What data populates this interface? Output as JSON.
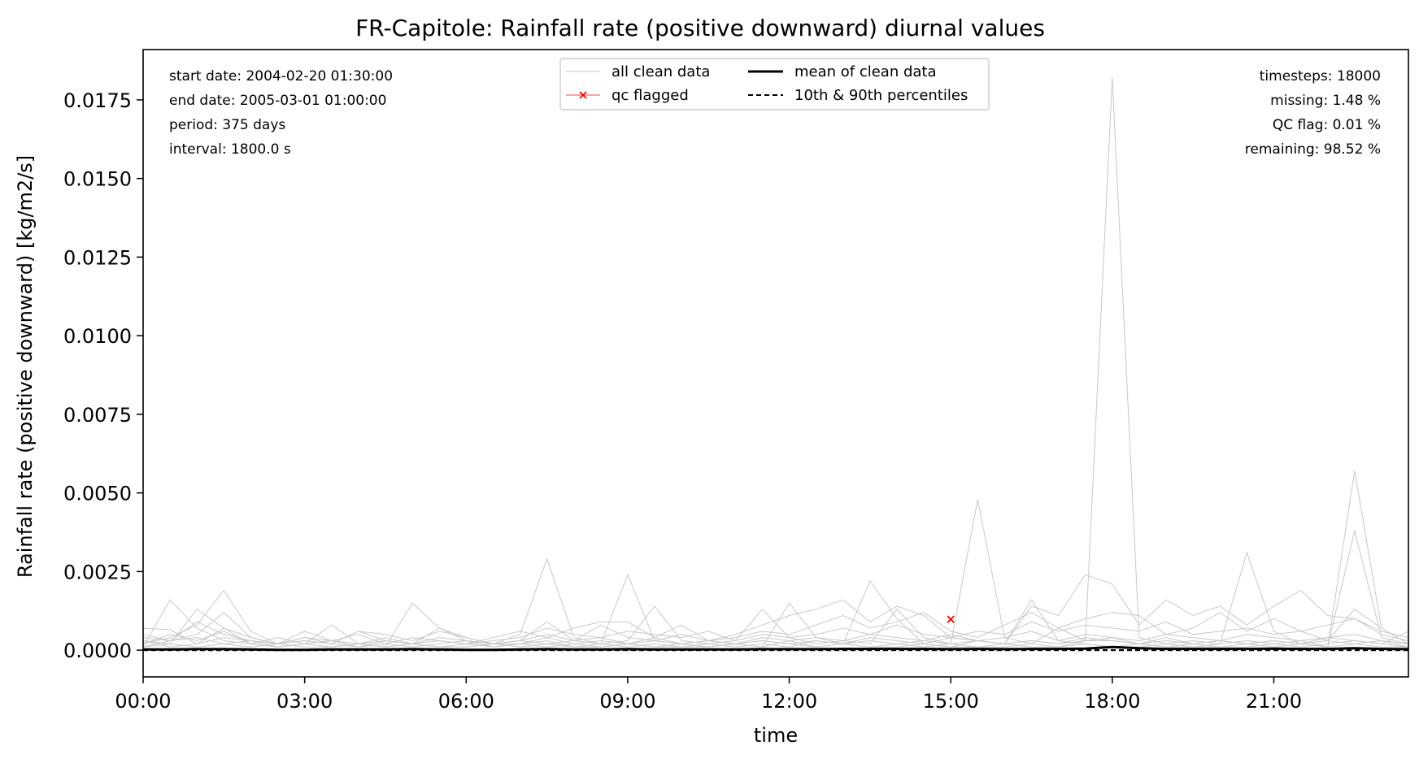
{
  "chart_data": {
    "type": "line",
    "title": "FR-Capitole: Rainfall rate (positive downward) diurnal values",
    "xlabel": "time",
    "ylabel": "Rainfall rate (positive downward) [kg/m2/s]",
    "xlim": [
      0,
      23.5
    ],
    "ylim": [
      -0.00085,
      0.0191
    ],
    "x_tick_values": [
      0,
      3,
      6,
      9,
      12,
      15,
      18,
      21
    ],
    "x_tick_labels": [
      "00:00",
      "03:00",
      "06:00",
      "09:00",
      "12:00",
      "15:00",
      "18:00",
      "21:00"
    ],
    "y_tick_values": [
      0,
      0.0025,
      0.005,
      0.0075,
      0.01,
      0.0125,
      0.015,
      0.0175
    ],
    "y_tick_labels": [
      "0.0000",
      "0.0025",
      "0.0050",
      "0.0075",
      "0.0100",
      "0.0125",
      "0.0150",
      "0.0175"
    ],
    "grid": false,
    "legend_position": "top-center",
    "legend": [
      {
        "label": "all clean data",
        "style": "thin-gray-line"
      },
      {
        "label": "mean of clean data",
        "style": "thick-black-line"
      },
      {
        "label": "qc flagged",
        "style": "red-x-marker"
      },
      {
        "label": "10th & 90th percentiles",
        "style": "dashed-black-line"
      }
    ],
    "info_left": [
      "start date: 2004-02-20 01:30:00",
      "end date: 2005-03-01 01:00:00",
      "period: 375 days",
      "interval: 1800.0 s"
    ],
    "info_right": [
      "timesteps: 18000",
      "missing: 1.48 %",
      "QC flag: 0.01 %",
      "remaining: 98.52 %"
    ],
    "colors": {
      "clean_data": "#c8c8c8",
      "mean": "#000000",
      "qc_flag": "#ff0000",
      "percentiles": "#000000"
    },
    "x": [
      0,
      0.5,
      1,
      1.5,
      2,
      2.5,
      3,
      3.5,
      4,
      4.5,
      5,
      5.5,
      6,
      6.5,
      7,
      7.5,
      8,
      8.5,
      9,
      9.5,
      10,
      10.5,
      11,
      11.5,
      12,
      12.5,
      13,
      13.5,
      14,
      14.5,
      15,
      15.5,
      16,
      16.5,
      17,
      17.5,
      18,
      18.5,
      19,
      19.5,
      20,
      20.5,
      21,
      21.5,
      22,
      22.5,
      23,
      23.5
    ],
    "series": [
      {
        "name": "mean of clean data",
        "role": "mean",
        "values": [
          2e-05,
          2e-05,
          3e-05,
          3e-05,
          2e-05,
          1e-05,
          1e-05,
          2e-05,
          2e-05,
          2e-05,
          3e-05,
          2e-05,
          1e-05,
          1e-05,
          2e-05,
          3e-05,
          2e-05,
          2e-05,
          3e-05,
          2e-05,
          2e-05,
          2e-05,
          2e-05,
          3e-05,
          3e-05,
          3e-05,
          4e-05,
          4e-05,
          4e-05,
          4e-05,
          3e-05,
          4e-05,
          3e-05,
          4e-05,
          4e-05,
          5e-05,
          0.0001,
          6e-05,
          4e-05,
          4e-05,
          4e-05,
          4e-05,
          5e-05,
          4e-05,
          4e-05,
          6e-05,
          4e-05,
          3e-05
        ]
      },
      {
        "name": "10th & 90th percentiles",
        "role": "p10",
        "values": [
          0,
          0,
          0,
          0,
          0,
          0,
          0,
          0,
          0,
          0,
          0,
          0,
          0,
          0,
          0,
          0,
          0,
          0,
          0,
          0,
          0,
          0,
          0,
          0,
          0,
          0,
          0,
          0,
          0,
          0,
          0,
          0,
          0,
          0,
          0,
          0,
          0,
          0,
          0,
          0,
          0,
          0,
          0,
          0,
          0,
          0,
          0,
          0
        ]
      },
      {
        "name": "10th & 90th percentiles",
        "role": "p90",
        "values": [
          0,
          0,
          0,
          0,
          0,
          0,
          0,
          0,
          0,
          0,
          0,
          0,
          0,
          0,
          0,
          0,
          0,
          0,
          0,
          0,
          0,
          0,
          0,
          0,
          0,
          0,
          0,
          0,
          0,
          0,
          0,
          0,
          0,
          0,
          0,
          0,
          0,
          0,
          0,
          0,
          0,
          0,
          0,
          0,
          0,
          0,
          0,
          0
        ]
      },
      {
        "name": "all clean data",
        "role": "day",
        "values": [
          0.0007,
          0.00065,
          0.0002,
          0.0007,
          0.0004,
          0.0002,
          0.0003,
          0.0002,
          0.0001,
          0.0003,
          0.0002,
          0.0001,
          0.0001,
          0.0002,
          0.0002,
          0.0003,
          0.0001,
          0.0002,
          0.0001,
          0.0002,
          0.0001,
          0.0001,
          0.0002,
          0.0001,
          0.0003,
          0.0001,
          0.0002,
          0.0001,
          0.0002,
          0.0001,
          0.0002,
          0.0001,
          0.0001,
          0.0002,
          0.0001,
          0.0003,
          0.0003,
          0.0002,
          0.0001,
          0.0002,
          0.0001,
          0.0001,
          0.0002,
          0.0001,
          0.0002,
          0.0003,
          0.0002,
          0.0001
        ]
      },
      {
        "name": "all clean data",
        "role": "day",
        "values": [
          0.0001,
          0.0016,
          0.0007,
          0.0003,
          0.0002,
          0.0001,
          0.0002,
          0.0001,
          0.0002,
          0.0001,
          0.0015,
          0.0007,
          0.0003,
          0.0002,
          0.0001,
          0.0002,
          0.0001,
          0.0001,
          0.0002,
          0.0001,
          0.0001,
          0.0002,
          0.0001,
          0.0002,
          0.0001,
          0.0003,
          0.0002,
          0.0001,
          0.0001,
          0.0002,
          0.0001,
          0.0001,
          0.0002,
          0.0001,
          0.0001,
          0.0002,
          0.0001,
          0.0001,
          0.0002,
          0.0001,
          0.0001,
          0.0002,
          0.0001,
          0.0002,
          0.0001,
          0.0002,
          0.0001,
          0.0001
        ]
      },
      {
        "name": "all clean data",
        "role": "day",
        "values": [
          0.0003,
          0.0002,
          0.0013,
          0.0007,
          0.0002,
          0.0001,
          0.0002,
          0.0008,
          0.0002,
          0.0001,
          0.0002,
          0.0001,
          0.0001,
          0.0002,
          0.0005,
          0.0029,
          0.0004,
          0.0002,
          0.0024,
          0.0003,
          0.0002,
          0.0001,
          0.0002,
          0.0001,
          0.0015,
          0.0004,
          0.0002,
          0.0022,
          0.001,
          0.0002,
          0.0001,
          0.0003,
          0.0002,
          0.0016,
          0.0003,
          0.0002,
          0.0001,
          0.0002,
          0.0001,
          0.0001,
          0.0002,
          0.0031,
          0.0006,
          0.0002,
          0.0001,
          0.0038,
          0.0004,
          0.0002
        ]
      },
      {
        "name": "all clean data",
        "role": "day",
        "values": [
          0.0002,
          0.0004,
          0.0008,
          0.0019,
          0.0006,
          0.0002,
          0.0003,
          0.0002,
          0.0006,
          0.0003,
          0.0002,
          0.0007,
          0.0004,
          0.0002,
          0.0003,
          0.0009,
          0.0003,
          0.0002,
          0.0003,
          0.0014,
          0.0003,
          0.0002,
          0.0003,
          0.0013,
          0.0004,
          0.0002,
          0.0003,
          0.0002,
          0.0013,
          0.0004,
          0.0002,
          0.0048,
          0.0004,
          0.0002,
          0.0007,
          0.0003,
          0.0182,
          0.0004,
          0.0002,
          0.0003,
          0.0002,
          0.0003,
          0.0002,
          0.0003,
          0.0001,
          0.0057,
          0.0007,
          0.0002
        ]
      },
      {
        "name": "all clean data",
        "role": "day",
        "values": [
          0.0001,
          0.0003,
          0.0005,
          0.0012,
          0.0004,
          0.0002,
          0.0006,
          0.0003,
          0.0002,
          0.0004,
          0.0002,
          0.0003,
          0.0002,
          0.0004,
          0.0006,
          0.0004,
          0.0007,
          0.0009,
          0.0009,
          0.0004,
          0.0008,
          0.0003,
          0.0005,
          0.0008,
          0.0011,
          0.0013,
          0.0016,
          0.0009,
          0.0014,
          0.0011,
          0.0004,
          0.0003,
          0.0002,
          0.0014,
          0.0011,
          0.0024,
          0.0021,
          0.0008,
          0.0016,
          0.0011,
          0.0014,
          0.0008,
          0.0014,
          0.0019,
          0.0011,
          0.001,
          0.0005,
          0.0003
        ]
      },
      {
        "name": "all clean data",
        "role": "day",
        "values": [
          0.0004,
          0.0003,
          0.0009,
          0.0005,
          0.0003,
          0.0002,
          0.0004,
          0.0002,
          0.0006,
          0.0005,
          0.0003,
          0.0006,
          0.0004,
          0.0002,
          0.0003,
          0.0005,
          0.0003,
          0.0008,
          0.0004,
          0.0003,
          0.0005,
          0.0003,
          0.0004,
          0.0006,
          0.0005,
          0.0008,
          0.0011,
          0.0007,
          0.0009,
          0.0012,
          0.0006,
          0.0004,
          0.0008,
          0.0012,
          0.0007,
          0.001,
          0.0012,
          0.0011,
          0.0005,
          0.0007,
          0.0012,
          0.0006,
          0.001,
          0.0006,
          0.0003,
          0.0013,
          0.0007,
          0.0002
        ]
      },
      {
        "name": "all clean data",
        "role": "day",
        "values": [
          0.0002,
          0.0005,
          0.0003,
          0.0006,
          0.0002,
          0.0004,
          0.0002,
          0.0003,
          0.0005,
          0.0002,
          0.0004,
          0.0003,
          0.0002,
          0.0003,
          0.0004,
          0.0007,
          0.0005,
          0.0004,
          0.0006,
          0.0005,
          0.0004,
          0.0006,
          0.0003,
          0.0005,
          0.0004,
          0.0005,
          0.0007,
          0.0005,
          0.0008,
          0.0005,
          0.0004,
          0.0006,
          0.0005,
          0.0009,
          0.0006,
          0.0008,
          0.0007,
          0.0006,
          0.0009,
          0.0005,
          0.0006,
          0.0007,
          0.0005,
          0.0006,
          0.0008,
          0.001,
          0.0006,
          0.0004
        ]
      },
      {
        "name": "all clean data",
        "role": "day",
        "values": [
          0.0003,
          0.0001,
          0.0002,
          0.0004,
          0.0003,
          0.0001,
          0.0002,
          0.0003,
          0.0001,
          0.0002,
          0.0001,
          0.0002,
          0.0003,
          0.0001,
          0.0002,
          0.0004,
          0.0002,
          0.0003,
          0.0002,
          0.0004,
          0.0002,
          0.0003,
          0.0002,
          0.0004,
          0.0003,
          0.0004,
          0.0003,
          0.0005,
          0.0004,
          0.0003,
          0.0005,
          0.0003,
          0.0004,
          0.0006,
          0.0003,
          0.0005,
          0.0004,
          0.0003,
          0.0005,
          0.0004,
          0.0003,
          0.0005,
          0.0004,
          0.0003,
          0.0004,
          0.0005,
          0.0003,
          0.0002
        ]
      },
      {
        "name": "all clean data",
        "role": "day",
        "values": [
          0.0001,
          0.0002,
          0.0001,
          0.0002,
          0.0001,
          0.0002,
          0.0001,
          0.0001,
          0.0002,
          0.0001,
          0.0002,
          0.0001,
          0.0002,
          0.0001,
          0.0002,
          0.0001,
          0.0002,
          0.0001,
          0.0002,
          0.0001,
          0.0002,
          0.0001,
          0.0002,
          0.0003,
          0.0002,
          0.0001,
          0.0002,
          0.0003,
          0.0002,
          0.0003,
          0.0002,
          0.0003,
          0.0002,
          0.0003,
          0.0002,
          0.0003,
          0.0004,
          0.0002,
          0.0003,
          0.0002,
          0.0003,
          0.0002,
          0.0003,
          0.0002,
          0.0003,
          0.0002,
          0.0003,
          0.0001
        ]
      },
      {
        "name": "all clean data",
        "role": "day",
        "values": [
          0.0005,
          0.0003,
          0.0004,
          0.0002,
          0.0003,
          0.0002,
          0.0004,
          0.0003,
          0.0002,
          0.0003,
          0.0002,
          0.0004,
          0.0003,
          0.0002,
          0.0003,
          0.0002,
          0.0003,
          0.0004,
          0.0002,
          0.0003,
          0.0002,
          0.0003,
          0.0002,
          0.0003,
          0.0002,
          0.0003,
          0.0002,
          0.0004,
          0.0003,
          0.0002,
          0.0004,
          0.0003,
          0.0002,
          0.0003,
          0.0002,
          0.0004,
          0.0003,
          0.0002,
          0.0004,
          0.0002,
          0.0003,
          0.0002,
          0.0003,
          0.0002,
          0.0004,
          0.0003,
          0.0002,
          0.0006
        ]
      }
    ],
    "qc_flagged_points": [
      {
        "x": 15,
        "y": 0.00098
      }
    ]
  }
}
